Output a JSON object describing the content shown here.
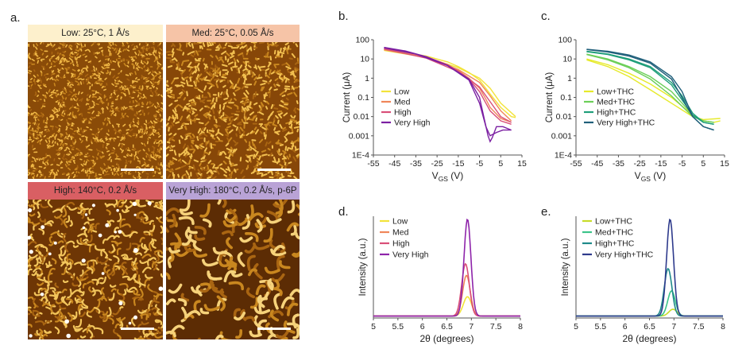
{
  "labels": {
    "a": "a.",
    "b": "b.",
    "c": "c.",
    "d": "d.",
    "e": "e."
  },
  "afm_panels": [
    {
      "label": "Low: 25°C, 1 Å/s",
      "label_color": "#fdf0cc",
      "grain": "fine"
    },
    {
      "label": "Med: 25°C, 0.05 Å/s",
      "label_color": "#f6c4a7",
      "grain": "medium"
    },
    {
      "label": "High: 140°C, 0.2 Å/s",
      "label_color": "#d95f63",
      "grain": "coarse"
    },
    {
      "label": "Very High: 180°C, 0.2 Å/s, p-6P",
      "label_color": "#b9a3d6",
      "grain": "large"
    }
  ],
  "chart_data": [
    {
      "id": "b",
      "type": "line",
      "yscale": "log",
      "ylabel": "Current (μA)",
      "xlabel_main": "V",
      "xlabel_sub": "GS",
      "xlabel_unit": " (V)",
      "xlim": [
        -55,
        15
      ],
      "ylim": [
        0.0001,
        100
      ],
      "xticks": [
        "-55",
        "-45",
        "-35",
        "-25",
        "-15",
        "-5",
        "5",
        "15"
      ],
      "yticks": [
        "100",
        "10",
        "1",
        "0.1",
        "0.01",
        "0.001",
        "1E-4"
      ],
      "legend_position": "left",
      "series": [
        {
          "name": "Low",
          "color": "#f2e33a",
          "x": [
            -50,
            -40,
            -30,
            -20,
            -15,
            -10,
            -5,
            0,
            5,
            10,
            12
          ],
          "y": [
            30,
            22,
            14,
            7,
            4,
            2,
            0.8,
            0.15,
            0.03,
            0.01,
            0.009
          ],
          "x2": [
            12,
            5,
            0,
            -5,
            -15,
            -30,
            -50
          ],
          "y2": [
            0.01,
            0.05,
            0.3,
            1,
            3.5,
            12,
            28
          ]
        },
        {
          "name": "Med",
          "color": "#f0865a",
          "x": [
            -50,
            -40,
            -30,
            -20,
            -15,
            -10,
            -5,
            -2,
            0,
            5,
            10
          ],
          "y": [
            32,
            22,
            12,
            5,
            2.5,
            1,
            0.3,
            0.08,
            0.03,
            0.008,
            0.005
          ],
          "x2": [
            10,
            5,
            0,
            -5,
            -15,
            -30,
            -50
          ],
          "y2": [
            0.006,
            0.02,
            0.12,
            0.6,
            2.8,
            12,
            30
          ]
        },
        {
          "name": "High",
          "color": "#d94f78",
          "x": [
            -50,
            -40,
            -30,
            -20,
            -15,
            -10,
            -5,
            -2,
            0,
            5,
            10
          ],
          "y": [
            35,
            24,
            13,
            5,
            2.3,
            0.9,
            0.2,
            0.05,
            0.02,
            0.006,
            0.004
          ],
          "x2": [
            10,
            5,
            0,
            -5,
            -15,
            -30,
            -50
          ],
          "y2": [
            0.005,
            0.01,
            0.06,
            0.35,
            2.2,
            11,
            33
          ]
        },
        {
          "name": "Very High",
          "color": "#7b1fa2",
          "x": [
            -50,
            -40,
            -30,
            -20,
            -10,
            -5,
            -3,
            -1,
            0,
            1,
            3,
            6,
            10
          ],
          "y": [
            40,
            26,
            13,
            4.5,
            0.9,
            0.1,
            0.01,
            0.001,
            0.0005,
            0.0008,
            0.003,
            0.003,
            0.002
          ],
          "x2": [
            10,
            6,
            3,
            0,
            -2,
            -5,
            -10,
            -20,
            -35,
            -50
          ],
          "y2": [
            0.002,
            0.002,
            0.0015,
            0.001,
            0.003,
            0.05,
            0.8,
            4.5,
            18,
            38
          ]
        }
      ]
    },
    {
      "id": "c",
      "type": "line",
      "yscale": "log",
      "ylabel": "Current (μA)",
      "xlabel_main": "V",
      "xlabel_sub": "GS",
      "xlabel_unit": " (V)",
      "xlim": [
        -55,
        15
      ],
      "ylim": [
        0.0001,
        100
      ],
      "xticks": [
        "-55",
        "-45",
        "-35",
        "-25",
        "-15",
        "-5",
        "5",
        "15"
      ],
      "yticks": [
        "100",
        "10",
        "1",
        "0.1",
        "0.01",
        "0.001",
        "1E-4"
      ],
      "legend_position": "left",
      "series": [
        {
          "name": "Low+THC",
          "color": "#e6ea2a",
          "x": [
            -50,
            -40,
            -30,
            -20,
            -10,
            -5,
            0,
            5,
            10,
            13
          ],
          "y": [
            10,
            5,
            1.8,
            0.5,
            0.1,
            0.035,
            0.012,
            0.006,
            0.005,
            0.006
          ],
          "x2": [
            13,
            5,
            0,
            -10,
            -20,
            -30,
            -40,
            -50
          ],
          "y2": [
            0.008,
            0.007,
            0.01,
            0.05,
            0.25,
            1.2,
            4,
            9
          ]
        },
        {
          "name": "Med+THC",
          "color": "#6ccf59",
          "x": [
            -50,
            -40,
            -30,
            -20,
            -10,
            -5,
            0,
            5,
            10
          ],
          "y": [
            18,
            10,
            4,
            1.2,
            0.2,
            0.05,
            0.012,
            0.006,
            0.005
          ],
          "x2": [
            10,
            5,
            0,
            -10,
            -20,
            -30,
            -40,
            -50
          ],
          "y2": [
            0.005,
            0.006,
            0.01,
            0.12,
            0.9,
            3.5,
            9,
            17
          ]
        },
        {
          "name": "High+THC",
          "color": "#1f9e7a",
          "x": [
            -50,
            -40,
            -30,
            -20,
            -10,
            -5,
            0,
            5,
            10
          ],
          "y": [
            25,
            18,
            10,
            4,
            0.6,
            0.12,
            0.015,
            0.005,
            0.004
          ],
          "x2": [
            10,
            5,
            0,
            -10,
            -20,
            -30,
            -40,
            -50
          ],
          "y2": [
            0.004,
            0.005,
            0.012,
            0.45,
            3.5,
            9,
            17,
            24
          ]
        },
        {
          "name": "Very High+THC",
          "color": "#1f5f7a",
          "x": [
            -50,
            -40,
            -30,
            -20,
            -10,
            -5,
            0,
            5,
            10
          ],
          "y": [
            32,
            25,
            16,
            7,
            1.2,
            0.2,
            0.01,
            0.003,
            0.002
          ],
          "x2": [
            10,
            5,
            0,
            -10,
            -20,
            -30,
            -40,
            -50
          ],
          "y2": [
            0.002,
            0.003,
            0.01,
            0.9,
            6,
            14,
            23,
            31
          ]
        }
      ]
    },
    {
      "id": "d",
      "type": "line",
      "ylabel": "Intensity (a.u.)",
      "xlabel": "2θ (degrees)",
      "xlim": [
        5,
        8
      ],
      "ylim": [
        0,
        1.05
      ],
      "xticks": [
        "5",
        "5.5",
        "6",
        "6.5",
        "7",
        "7.5",
        "8"
      ],
      "legend_position": "top-left",
      "series": [
        {
          "name": "Low",
          "color": "#f2e33a",
          "center": 6.92,
          "width": 0.12,
          "height": 0.2,
          "baseline": 0.02
        },
        {
          "name": "Med",
          "color": "#f0865a",
          "center": 6.9,
          "width": 0.11,
          "height": 0.42,
          "baseline": 0.02
        },
        {
          "name": "High",
          "color": "#d94f78",
          "center": 6.88,
          "width": 0.11,
          "height": 0.54,
          "baseline": 0.02
        },
        {
          "name": "Very High",
          "color": "#8e24aa",
          "center": 6.92,
          "width": 0.1,
          "height": 1.0,
          "baseline": 0.02
        }
      ]
    },
    {
      "id": "e",
      "type": "line",
      "ylabel": "Intensity (a.u.)",
      "xlabel": "2θ (degrees)",
      "xlim": [
        5,
        8
      ],
      "ylim": [
        0,
        1.05
      ],
      "xticks": [
        "5",
        "5.5",
        "6",
        "6.5",
        "7",
        "7.5",
        "8"
      ],
      "legend_position": "top-left",
      "series": [
        {
          "name": "Low+THC",
          "color": "#c8dc2a",
          "center": 6.98,
          "width": 0.12,
          "height": 0.07,
          "baseline": 0.02
        },
        {
          "name": "Med+THC",
          "color": "#3cc48a",
          "center": 6.95,
          "width": 0.11,
          "height": 0.26,
          "baseline": 0.02
        },
        {
          "name": "High+THC",
          "color": "#1f8a8a",
          "center": 6.88,
          "width": 0.11,
          "height": 0.49,
          "baseline": 0.02
        },
        {
          "name": "Very High+THC",
          "color": "#2e3a8c",
          "center": 6.92,
          "width": 0.1,
          "height": 1.0,
          "baseline": 0.02
        }
      ]
    }
  ]
}
